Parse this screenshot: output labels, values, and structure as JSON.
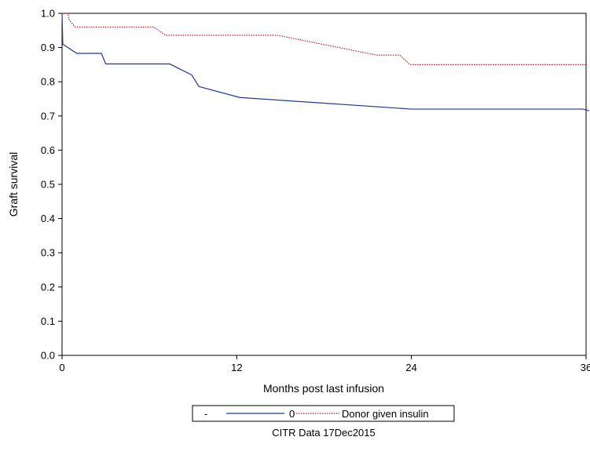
{
  "chart_data": {
    "type": "line",
    "step": true,
    "xlabel": "Months post last infusion",
    "ylabel": "Graft survival",
    "xlim": [
      0,
      36
    ],
    "ylim": [
      0,
      1
    ],
    "xticks": [
      0,
      12,
      24,
      36
    ],
    "yticks": [
      0.0,
      0.1,
      0.2,
      0.3,
      0.4,
      0.5,
      0.6,
      0.7,
      0.8,
      0.9,
      1.0
    ],
    "xtick_labels": [
      "0",
      "12",
      "24",
      "36"
    ],
    "ytick_labels": [
      "0.0",
      "0.1",
      "0.2",
      "0.3",
      "0.4",
      "0.5",
      "0.6",
      "0.7",
      "0.8",
      "0.9",
      "1.0"
    ],
    "grid": false,
    "legend_position": "bottom",
    "legend_title": "-",
    "series": [
      {
        "name": "0",
        "color": "#1f3a93",
        "style": "solid",
        "points": [
          [
            0,
            1.0
          ],
          [
            0.05,
            0.91
          ],
          [
            1.0,
            0.883
          ],
          [
            2.7,
            0.883
          ],
          [
            3.0,
            0.852
          ],
          [
            7.4,
            0.852
          ],
          [
            8.9,
            0.82
          ],
          [
            9.4,
            0.786
          ],
          [
            12.2,
            0.754
          ],
          [
            24.0,
            0.72
          ],
          [
            35.8,
            0.72
          ],
          [
            36.2,
            0.715
          ]
        ]
      },
      {
        "name": "Donor given insulin",
        "color": "#b22222",
        "style": "dotted",
        "points": [
          [
            0,
            1.0
          ],
          [
            0.4,
            1.0
          ],
          [
            0.5,
            0.98
          ],
          [
            0.9,
            0.96
          ],
          [
            6.3,
            0.96
          ],
          [
            7.1,
            0.936
          ],
          [
            14.8,
            0.936
          ],
          [
            21.6,
            0.878
          ],
          [
            23.2,
            0.878
          ],
          [
            23.9,
            0.85
          ],
          [
            36.0,
            0.85
          ]
        ]
      }
    ],
    "footnote": "CITR  Data 17Dec2015"
  }
}
